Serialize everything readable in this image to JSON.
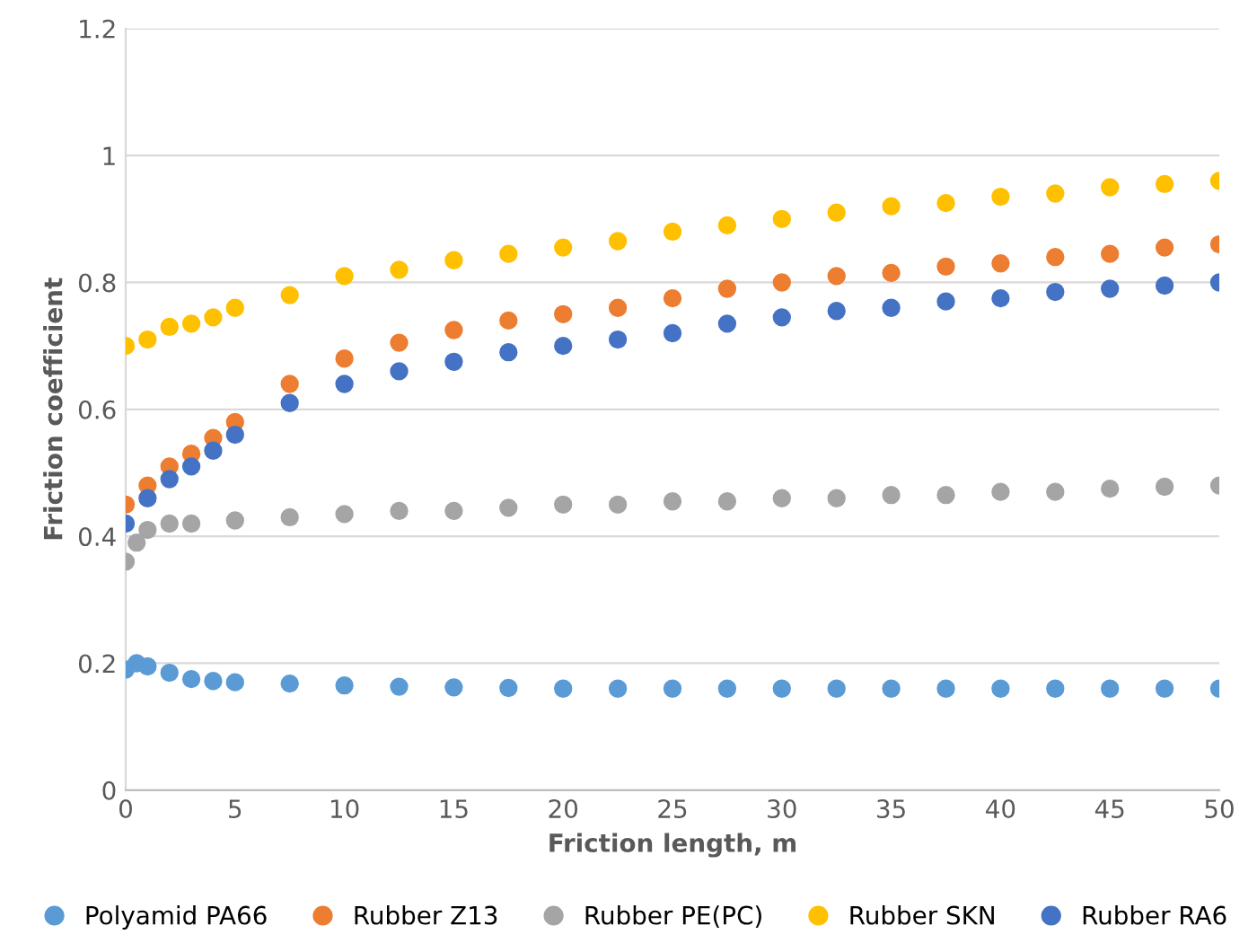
{
  "chart_data": {
    "type": "scatter",
    "xlabel": "Friction length, m",
    "ylabel": "Friction coefficient",
    "xlim": [
      0,
      50
    ],
    "xticks": [
      0,
      5,
      10,
      15,
      20,
      25,
      30,
      35,
      40,
      45,
      50
    ],
    "ylim": [
      0,
      1.2
    ],
    "yticks": [
      0,
      0.2,
      0.4,
      0.6,
      0.8,
      1,
      1.2
    ],
    "grid": "y",
    "legend": "bottom",
    "marker": "circle",
    "series": [
      {
        "name": "Polyamid PA66",
        "color": "#5b9bd5",
        "x": [
          0,
          0.5,
          1,
          2,
          3,
          4,
          5,
          7.5,
          10,
          12.5,
          15,
          17.5,
          20,
          22.5,
          25,
          27.5,
          30,
          32.5,
          35,
          37.5,
          40,
          42.5,
          45,
          47.5,
          50
        ],
        "values": [
          0.19,
          0.2,
          0.195,
          0.185,
          0.175,
          0.172,
          0.17,
          0.168,
          0.165,
          0.163,
          0.162,
          0.161,
          0.16,
          0.16,
          0.16,
          0.16,
          0.16,
          0.16,
          0.16,
          0.16,
          0.16,
          0.16,
          0.16,
          0.16,
          0.16
        ]
      },
      {
        "name": "Rubber Z13",
        "color": "#ed7d31",
        "x": [
          0,
          1,
          2,
          3,
          4,
          5,
          7.5,
          10,
          12.5,
          15,
          17.5,
          20,
          22.5,
          25,
          27.5,
          30,
          32.5,
          35,
          37.5,
          40,
          42.5,
          45,
          47.5,
          50
        ],
        "values": [
          0.45,
          0.48,
          0.51,
          0.53,
          0.555,
          0.58,
          0.64,
          0.68,
          0.705,
          0.725,
          0.74,
          0.75,
          0.76,
          0.775,
          0.79,
          0.8,
          0.81,
          0.815,
          0.825,
          0.83,
          0.84,
          0.845,
          0.855,
          0.86
        ]
      },
      {
        "name": "Rubber PE(PC)",
        "color": "#a5a5a5",
        "x": [
          0,
          0.5,
          1,
          2,
          3,
          5,
          7.5,
          10,
          12.5,
          15,
          17.5,
          20,
          22.5,
          25,
          27.5,
          30,
          32.5,
          35,
          37.5,
          40,
          42.5,
          45,
          47.5,
          50
        ],
        "values": [
          0.36,
          0.39,
          0.41,
          0.42,
          0.42,
          0.425,
          0.43,
          0.435,
          0.44,
          0.44,
          0.445,
          0.45,
          0.45,
          0.455,
          0.455,
          0.46,
          0.46,
          0.465,
          0.465,
          0.47,
          0.47,
          0.475,
          0.478,
          0.48
        ]
      },
      {
        "name": "Rubber SKN",
        "color": "#ffc000",
        "x": [
          0,
          1,
          2,
          3,
          4,
          5,
          7.5,
          10,
          12.5,
          15,
          17.5,
          20,
          22.5,
          25,
          27.5,
          30,
          32.5,
          35,
          37.5,
          40,
          42.5,
          45,
          47.5,
          50
        ],
        "values": [
          0.7,
          0.71,
          0.73,
          0.735,
          0.745,
          0.76,
          0.78,
          0.81,
          0.82,
          0.835,
          0.845,
          0.855,
          0.865,
          0.88,
          0.89,
          0.9,
          0.91,
          0.92,
          0.925,
          0.935,
          0.94,
          0.95,
          0.955,
          0.96
        ]
      },
      {
        "name": "Rubber RA6",
        "color": "#4472c4",
        "x": [
          0,
          1,
          2,
          3,
          4,
          5,
          7.5,
          10,
          12.5,
          15,
          17.5,
          20,
          22.5,
          25,
          27.5,
          30,
          32.5,
          35,
          37.5,
          40,
          42.5,
          45,
          47.5,
          50
        ],
        "values": [
          0.42,
          0.46,
          0.49,
          0.51,
          0.535,
          0.56,
          0.61,
          0.64,
          0.66,
          0.675,
          0.69,
          0.7,
          0.71,
          0.72,
          0.735,
          0.745,
          0.755,
          0.76,
          0.77,
          0.775,
          0.785,
          0.79,
          0.795,
          0.8
        ]
      }
    ]
  }
}
